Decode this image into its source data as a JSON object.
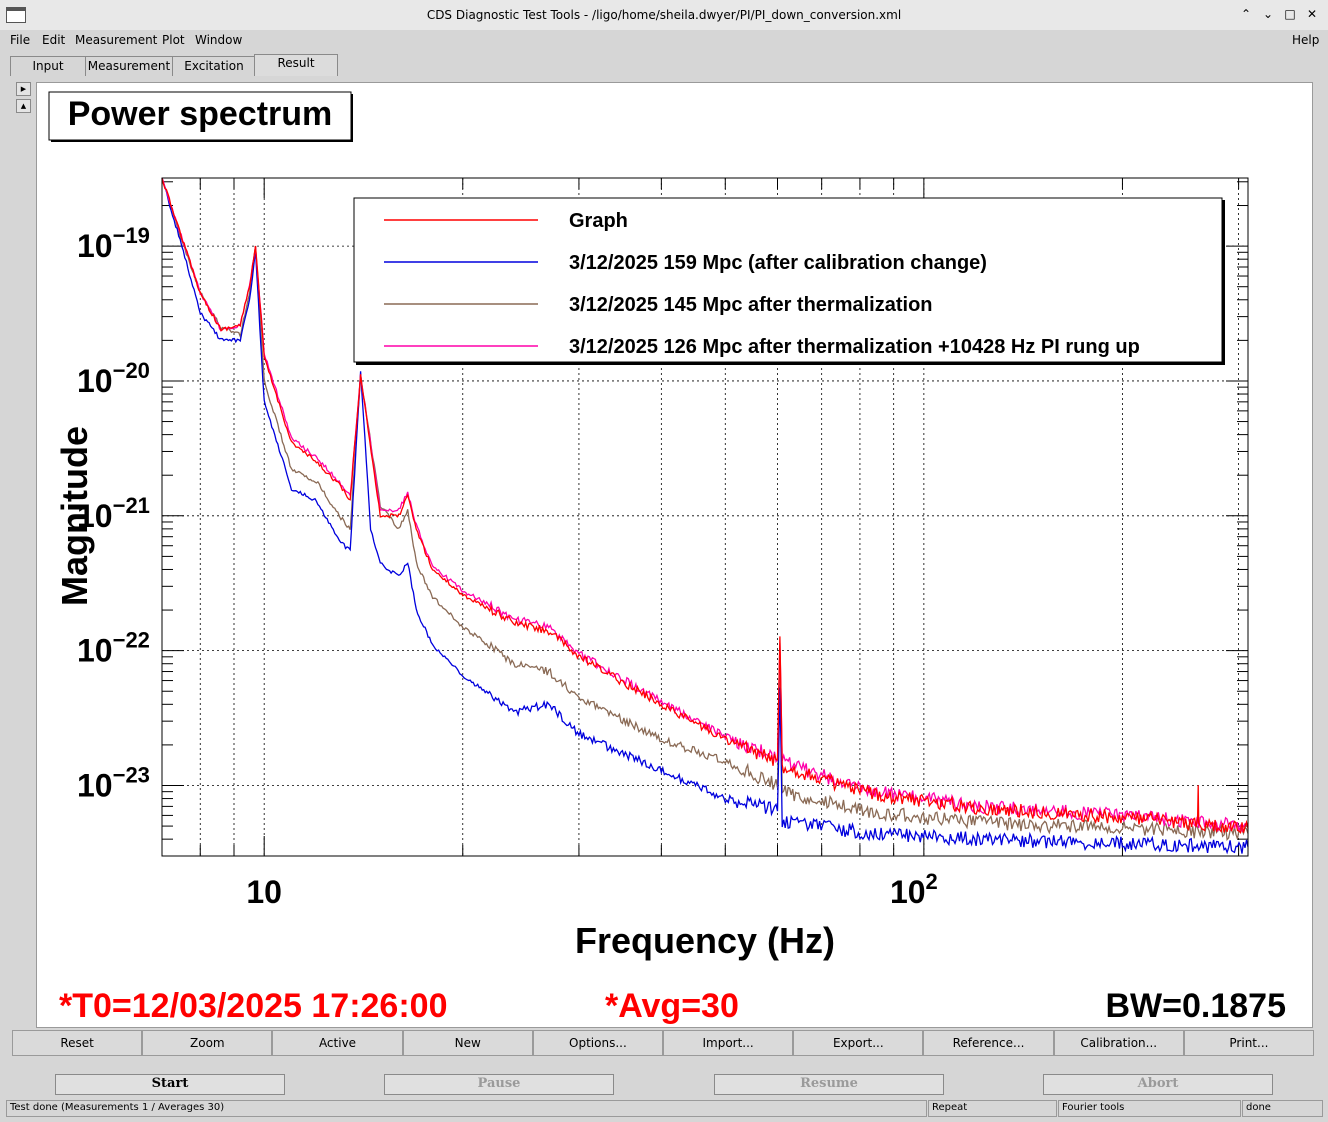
{
  "window": {
    "title": "CDS Diagnostic Test Tools - /ligo/home/sheila.dwyer/PI/PI_down_conversion.xml",
    "controls": [
      "⌃",
      "⌄",
      "□",
      "✕"
    ]
  },
  "menu": {
    "items": [
      "File",
      "Edit",
      "Measurement",
      "Plot",
      "Window"
    ],
    "help": "Help"
  },
  "tabs": [
    "Input",
    "Measurement",
    "Excitation",
    "Result"
  ],
  "active_tab": "Result",
  "plot_panel": {
    "title": "Power spectrum",
    "info": {
      "t0": "*T0=12/03/2025 17:26:00",
      "avg": "*Avg=30",
      "bw": "BW=0.1875"
    }
  },
  "chart_data": {
    "type": "line",
    "title": "Power spectrum",
    "xlabel": "Frequency (Hz)",
    "ylabel": "Magnitude",
    "xscale": "log",
    "yscale": "log",
    "xlim": [
      7,
      310
    ],
    "ylim": [
      3e-24,
      3.2e-19
    ],
    "grid": true,
    "legend_position": "top-right",
    "x_ticks": [
      {
        "value": 10,
        "label": "10",
        "exp": ""
      },
      {
        "value": 100,
        "label": "10",
        "exp": "2"
      }
    ],
    "y_ticks": [
      {
        "value": 1e-19,
        "label": "10",
        "exp": "−19"
      },
      {
        "value": 1e-20,
        "label": "10",
        "exp": "−20"
      },
      {
        "value": 1e-21,
        "label": "10",
        "exp": "−21"
      },
      {
        "value": 1e-22,
        "label": "10",
        "exp": "−22"
      },
      {
        "value": 1e-23,
        "label": "10",
        "exp": "−23"
      }
    ],
    "series": [
      {
        "name": "Graph",
        "color": "#ff0000",
        "x": [
          7,
          8,
          8.6,
          9.2,
          9.5,
          9.7,
          10,
          11,
          12,
          13,
          13.5,
          14,
          15,
          16,
          16.5,
          17,
          18,
          20,
          24,
          27,
          30,
          40,
          50,
          60,
          60.5,
          61,
          80,
          120,
          200,
          260,
          260.5,
          261,
          310
        ],
        "y": [
          3.2e-19,
          4.5e-20,
          2.4e-20,
          2.6e-20,
          5e-20,
          1e-19,
          1.5e-20,
          3.5e-21,
          2.5e-21,
          1.7e-21,
          1.3e-21,
          1.1e-20,
          1e-21,
          1e-21,
          1.4e-21,
          8e-22,
          4e-22,
          2.6e-22,
          1.6e-22,
          1.4e-22,
          9e-23,
          4e-23,
          2.2e-23,
          1.5e-23,
          1.2e-22,
          1.4e-23,
          9e-24,
          6.8e-24,
          5.8e-24,
          5.2e-24,
          1e-23,
          5e-24,
          4.8e-24
        ]
      },
      {
        "name": "3/12/2025 159 Mpc (after calibration change)",
        "color": "#0000dd",
        "x": [
          7,
          7.5,
          8,
          8.6,
          9.2,
          9.5,
          9.7,
          10,
          11,
          12,
          13,
          13.5,
          14,
          14.5,
          15,
          16,
          16.5,
          17,
          18,
          20,
          24,
          27,
          30,
          40,
          50,
          60,
          60.5,
          61,
          80,
          120,
          200,
          310
        ],
        "y": [
          3.2e-19,
          1e-19,
          3.2e-20,
          2e-20,
          2e-20,
          4e-20,
          9e-20,
          7e-21,
          1.6e-21,
          1.3e-21,
          6.5e-22,
          5.5e-22,
          1.2e-20,
          8e-22,
          4.5e-22,
          3.5e-22,
          4.5e-22,
          2e-22,
          1.1e-22,
          6.5e-23,
          3.5e-23,
          4e-23,
          2.4e-23,
          1.3e-23,
          8e-24,
          6.5e-24,
          5e-23,
          5.5e-24,
          4.5e-24,
          4e-24,
          3.7e-24,
          3.5e-24
        ]
      },
      {
        "name": "3/12/2025 145 Mpc after thermalization",
        "color": "#8a6a55",
        "x": [
          7,
          7.5,
          8,
          8.6,
          9.2,
          9.5,
          9.7,
          10,
          11,
          12,
          13,
          13.5,
          14,
          15,
          16,
          16.5,
          17,
          18,
          20,
          24,
          27,
          30,
          40,
          50,
          60,
          60.5,
          61,
          80,
          120,
          200,
          310
        ],
        "y": [
          3.2e-19,
          1.1e-19,
          4.5e-20,
          2.5e-20,
          2.2e-20,
          4.5e-20,
          1e-19,
          1e-20,
          2.2e-21,
          1.8e-21,
          1e-21,
          8e-22,
          1.1e-20,
          1.2e-21,
          8e-22,
          1.1e-21,
          4.5e-22,
          2.5e-22,
          1.5e-22,
          8e-23,
          7e-23,
          4.5e-23,
          2.2e-23,
          1.5e-23,
          1e-23,
          8e-23,
          9e-24,
          6.5e-24,
          5.3e-24,
          4.8e-24,
          4.4e-24
        ]
      },
      {
        "name": "3/12/2025 126 Mpc after thermalization +10428 Hz PI rung up",
        "color": "#ff00aa",
        "x": [
          7,
          8,
          8.6,
          9.2,
          9.5,
          9.7,
          10,
          11,
          12,
          13,
          13.5,
          14,
          15,
          16,
          16.5,
          17,
          18,
          20,
          24,
          27,
          30,
          40,
          50,
          60,
          60.5,
          61,
          80,
          120,
          200,
          310
        ],
        "y": [
          3.2e-19,
          4.5e-20,
          2.4e-20,
          2.6e-20,
          5e-20,
          1e-19,
          1.6e-20,
          3.8e-21,
          2.7e-21,
          1.8e-21,
          1.4e-21,
          1.1e-20,
          1.1e-21,
          1.1e-21,
          1.5e-21,
          8.5e-22,
          4.2e-22,
          2.8e-22,
          1.7e-22,
          1.5e-22,
          9.5e-23,
          4.2e-23,
          2.3e-23,
          1.6e-23,
          1.1e-22,
          1.5e-23,
          9.5e-24,
          7e-24,
          6e-24,
          5e-24
        ]
      }
    ]
  },
  "buttons": [
    "Reset",
    "Zoom",
    "Active",
    "New",
    "Options...",
    "Import...",
    "Export...",
    "Reference...",
    "Calibration...",
    "Print..."
  ],
  "run_controls": {
    "start": "Start",
    "pause": "Pause",
    "resume": "Resume",
    "abort": "Abort"
  },
  "status": {
    "message": "Test done (Measurements 1 / Averages 30)",
    "repeat": "Repeat",
    "fourier": "Fourier tools",
    "state": "done"
  }
}
